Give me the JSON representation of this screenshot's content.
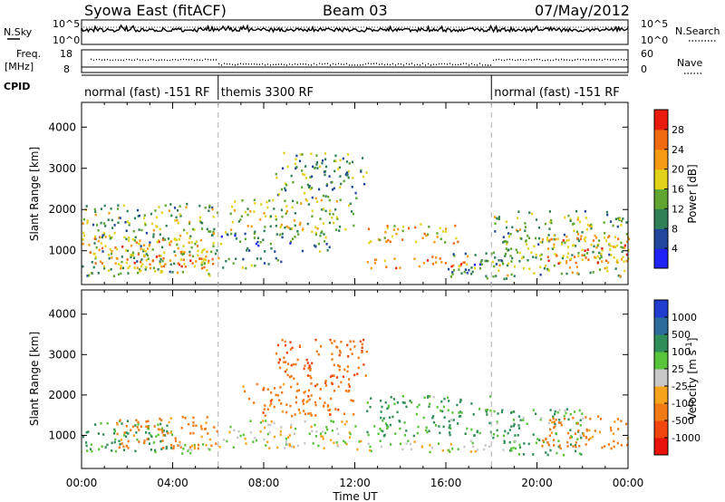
{
  "header": {
    "station": "Syowa East (fitACF)",
    "beam": "Beam 03",
    "date": "07/May/2012"
  },
  "strip_panels": {
    "nsky_label": "N.Sky",
    "nsky_ticks": [
      "10^5",
      "10^0"
    ],
    "nsearch_label": "N.Search",
    "nsearch_ticks": [
      "10^5",
      "10^0"
    ],
    "freq_label": "Freq.",
    "freq_unit": "[MHz]",
    "freq_ticks": [
      "18",
      "8"
    ],
    "nave_label": "Nave",
    "nave_ticks": [
      "60",
      "0"
    ],
    "cpid_label": "CPID"
  },
  "cpid_modes": [
    {
      "label": "normal (fast) -151 RF",
      "start_hour": 0,
      "end_hour": 6
    },
    {
      "label": "themis 3300 RF",
      "start_hour": 6,
      "end_hour": 18
    },
    {
      "label": "normal (fast) -151 RF",
      "start_hour": 18,
      "end_hour": 24
    }
  ],
  "axes": {
    "ylabel": "Slant Range [km]",
    "xlabel": "Time UT",
    "xticks": [
      "00:00",
      "04:00",
      "08:00",
      "12:00",
      "16:00",
      "20:00",
      "00:00"
    ],
    "yticks": [
      "1000",
      "2000",
      "3000",
      "4000"
    ]
  },
  "colorbars": {
    "power": {
      "label": "Power [dB]",
      "ticks": [
        "4",
        "8",
        "12",
        "16",
        "20",
        "24",
        "28"
      ],
      "colors": [
        "#1f23f5",
        "#20479b",
        "#2f7f57",
        "#5fa52f",
        "#e1d21a",
        "#f59a12",
        "#f06a10",
        "#e81b0c"
      ]
    },
    "velocity": {
      "label": "Velocity [m s^-1]",
      "ticks": [
        "1000",
        "500",
        "100",
        "25",
        "-25",
        "-100",
        "-500",
        "-1000"
      ],
      "colors": [
        "#1f3ed0",
        "#2b6b9c",
        "#2f8e5a",
        "#57c43a",
        "#c8c8c8",
        "#f6a41b",
        "#f07a14",
        "#f0460e",
        "#e8140c"
      ]
    }
  },
  "chart_data": [
    {
      "type": "heatmap",
      "title": "Power",
      "xlabel": "Time UT",
      "ylabel": "Slant Range [km]",
      "xlim_hours": [
        0,
        24
      ],
      "ylim_km": [
        180,
        4600
      ],
      "colorbar_label": "Power [dB]",
      "colorbar_ticks": [
        4,
        8,
        12,
        16,
        20,
        24,
        28
      ],
      "echo_regions": [
        {
          "t0": 0.0,
          "t1": 6.0,
          "r0": 400,
          "r1": 2200,
          "v": 14
        },
        {
          "t0": 0.3,
          "t1": 5.5,
          "r0": 600,
          "r1": 1400,
          "v": 22
        },
        {
          "t0": 3.5,
          "t1": 6.0,
          "r0": 600,
          "r1": 850,
          "v": 26
        },
        {
          "t0": 6.0,
          "t1": 11.0,
          "r0": 1000,
          "r1": 1500,
          "v": 10
        },
        {
          "t0": 6.0,
          "t1": 9.0,
          "r0": 600,
          "r1": 850,
          "v": 12
        },
        {
          "t0": 6.5,
          "t1": 12.0,
          "r0": 1500,
          "r1": 2300,
          "v": 16
        },
        {
          "t0": 8.5,
          "t1": 12.5,
          "r0": 2300,
          "r1": 3400,
          "v": 12
        },
        {
          "t0": 12.5,
          "t1": 17.0,
          "r0": 600,
          "r1": 900,
          "v": 24
        },
        {
          "t0": 12.5,
          "t1": 16.5,
          "r0": 1200,
          "r1": 1700,
          "v": 20
        },
        {
          "t0": 16.0,
          "t1": 19.0,
          "r0": 300,
          "r1": 1000,
          "v": 10
        },
        {
          "t0": 18.0,
          "t1": 24.0,
          "r0": 400,
          "r1": 2000,
          "v": 14
        },
        {
          "t0": 20.0,
          "t1": 24.0,
          "r0": 700,
          "r1": 1400,
          "v": 24
        }
      ]
    },
    {
      "type": "heatmap",
      "title": "Velocity",
      "xlabel": "Time UT",
      "ylabel": "Slant Range [km]",
      "xlim_hours": [
        0,
        24
      ],
      "ylim_km": [
        180,
        4600
      ],
      "colorbar_label": "Velocity [m s^-1]",
      "colorbar_ticks": [
        1000,
        500,
        100,
        25,
        -25,
        -100,
        -500,
        -1000
      ],
      "echo_regions": [
        {
          "t0": 0.0,
          "t1": 4.0,
          "r0": 600,
          "r1": 1400,
          "v": 150
        },
        {
          "t0": 1.5,
          "t1": 6.0,
          "r0": 700,
          "r1": 1500,
          "v": -200
        },
        {
          "t0": 4.0,
          "t1": 6.0,
          "r0": 500,
          "r1": 850,
          "v": 0
        },
        {
          "t0": 6.0,
          "t1": 12.0,
          "r0": 700,
          "r1": 1400,
          "v": 0
        },
        {
          "t0": 7.0,
          "t1": 12.0,
          "r0": 1500,
          "r1": 2300,
          "v": -300
        },
        {
          "t0": 8.5,
          "t1": 12.5,
          "r0": 2300,
          "r1": 3400,
          "v": -400
        },
        {
          "t0": 12.0,
          "t1": 18.0,
          "r0": 600,
          "r1": 900,
          "v": 0
        },
        {
          "t0": 12.5,
          "t1": 18.0,
          "r0": 1000,
          "r1": 2000,
          "v": 120
        },
        {
          "t0": 18.0,
          "t1": 22.0,
          "r0": 500,
          "r1": 1700,
          "v": 100
        },
        {
          "t0": 20.0,
          "t1": 24.0,
          "r0": 700,
          "r1": 1500,
          "v": -200
        }
      ]
    }
  ]
}
